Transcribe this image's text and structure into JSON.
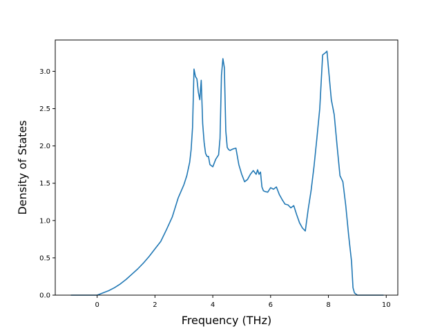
{
  "chart_data": {
    "type": "line",
    "title": "",
    "xlabel": "Frequency (THz)",
    "ylabel": "Density of States",
    "xlim": [
      -1.45,
      10.4
    ],
    "ylim": [
      0.0,
      3.42
    ],
    "xticks": [
      0,
      2,
      4,
      6,
      8,
      10
    ],
    "xtick_labels": [
      "0",
      "2",
      "4",
      "6",
      "8",
      "10"
    ],
    "yticks": [
      0.0,
      0.5,
      1.0,
      1.5,
      2.0,
      2.5,
      3.0
    ],
    "ytick_labels": [
      "0.0",
      "0.5",
      "1.0",
      "1.5",
      "2.0",
      "2.5",
      "3.0"
    ],
    "grid": false,
    "legend": null,
    "series": [
      {
        "color": "#1f77b4",
        "x": [
          -0.9,
          0.0,
          0.2,
          0.4,
          0.6,
          0.8,
          1.0,
          1.2,
          1.4,
          1.6,
          1.8,
          2.0,
          2.2,
          2.4,
          2.6,
          2.8,
          3.0,
          3.1,
          3.2,
          3.25,
          3.3,
          3.35,
          3.4,
          3.45,
          3.5,
          3.55,
          3.6,
          3.65,
          3.7,
          3.75,
          3.8,
          3.85,
          3.9,
          4.0,
          4.1,
          4.2,
          4.25,
          4.3,
          4.35,
          4.4,
          4.45,
          4.5,
          4.55,
          4.6,
          4.7,
          4.8,
          4.9,
          5.0,
          5.1,
          5.2,
          5.3,
          5.4,
          5.5,
          5.55,
          5.6,
          5.65,
          5.7,
          5.75,
          5.8,
          5.9,
          6.0,
          6.1,
          6.2,
          6.3,
          6.4,
          6.5,
          6.6,
          6.7,
          6.8,
          6.9,
          7.0,
          7.1,
          7.2,
          7.3,
          7.4,
          7.5,
          7.6,
          7.7,
          7.8,
          7.9,
          7.95,
          8.0,
          8.1,
          8.2,
          8.3,
          8.4,
          8.5,
          8.6,
          8.7,
          8.8,
          8.85,
          8.9,
          9.0,
          9.3,
          9.9
        ],
        "y": [
          0.0,
          0.0,
          0.03,
          0.06,
          0.1,
          0.15,
          0.21,
          0.28,
          0.35,
          0.43,
          0.52,
          0.62,
          0.72,
          0.88,
          1.05,
          1.3,
          1.48,
          1.6,
          1.78,
          1.95,
          2.25,
          3.03,
          2.93,
          2.9,
          2.72,
          2.62,
          2.88,
          2.3,
          2.05,
          1.9,
          1.86,
          1.86,
          1.75,
          1.72,
          1.82,
          1.88,
          2.1,
          2.95,
          3.17,
          3.05,
          2.2,
          1.98,
          1.95,
          1.94,
          1.96,
          1.97,
          1.75,
          1.62,
          1.52,
          1.55,
          1.62,
          1.67,
          1.62,
          1.68,
          1.62,
          1.65,
          1.45,
          1.4,
          1.39,
          1.38,
          1.44,
          1.42,
          1.45,
          1.35,
          1.28,
          1.22,
          1.21,
          1.17,
          1.2,
          1.08,
          0.97,
          0.9,
          0.86,
          1.15,
          1.4,
          1.72,
          2.1,
          2.5,
          3.22,
          3.25,
          3.27,
          3.05,
          2.62,
          2.42,
          2.0,
          1.6,
          1.52,
          1.2,
          0.8,
          0.45,
          0.1,
          0.03,
          0.0,
          0.0,
          0.0
        ]
      }
    ]
  }
}
